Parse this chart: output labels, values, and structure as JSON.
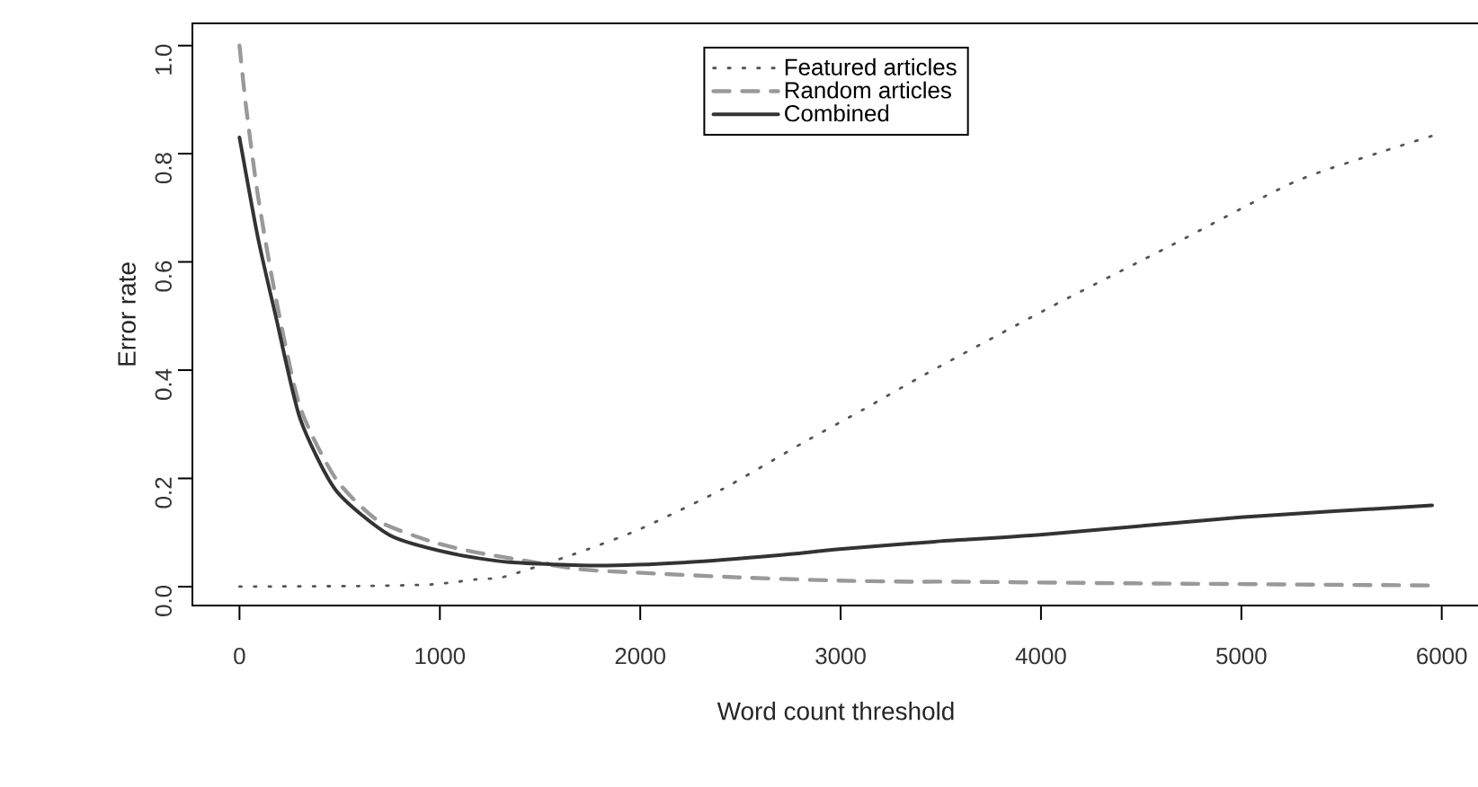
{
  "chart_data": {
    "type": "line",
    "xlabel": "Word count threshold",
    "ylabel": "Error rate",
    "xlim": [
      -235,
      6190
    ],
    "ylim": [
      -0.035,
      1.041
    ],
    "xticks": [
      0,
      1000,
      2000,
      3000,
      4000,
      5000,
      6000
    ],
    "yticks": [
      {
        "value": 0,
        "label": "0.0"
      },
      {
        "value": 0.2,
        "label": "0.2"
      },
      {
        "value": 0.4,
        "label": "0.4"
      },
      {
        "value": 0.6,
        "label": "0.6"
      },
      {
        "value": 0.8,
        "label": "0.8"
      },
      {
        "value": 1.0,
        "label": "1.0"
      }
    ],
    "grid": false,
    "legend": "top",
    "series": [
      {
        "name": "Featured articles",
        "color": "#555555",
        "line_style": "dotted",
        "x": [
          0,
          598,
          960,
          1200,
          1320,
          1662,
          1991,
          2410,
          2813,
          3112,
          3426,
          4024,
          4652,
          5265,
          5713,
          5952
        ],
        "values": [
          0,
          0.001,
          0.004,
          0.014,
          0.018,
          0.059,
          0.105,
          0.18,
          0.266,
          0.327,
          0.393,
          0.512,
          0.631,
          0.748,
          0.805,
          0.833
        ]
      },
      {
        "name": "Random articles",
        "color": "#999999",
        "line_style": "dashed",
        "x": [
          0,
          33,
          93,
          182,
          302,
          481,
          691,
          960,
          1200,
          1677,
          1973,
          2484,
          2993,
          3352,
          3561,
          4457,
          5952
        ],
        "values": [
          1.0,
          0.886,
          0.72,
          0.532,
          0.332,
          0.199,
          0.122,
          0.083,
          0.062,
          0.033,
          0.026,
          0.017,
          0.011,
          0.009,
          0.009,
          0.006,
          0.002
        ]
      },
      {
        "name": "Combined",
        "color": "#333333",
        "line_style": "solid",
        "x": [
          0,
          93,
          182,
          302,
          481,
          750,
          1049,
          1347,
          1794,
          2242,
          2691,
          2993,
          3471,
          4009,
          4996,
          5952
        ],
        "values": [
          0.83,
          0.643,
          0.498,
          0.311,
          0.178,
          0.095,
          0.062,
          0.045,
          0.039,
          0.045,
          0.058,
          0.069,
          0.083,
          0.096,
          0.128,
          0.15
        ]
      }
    ]
  }
}
